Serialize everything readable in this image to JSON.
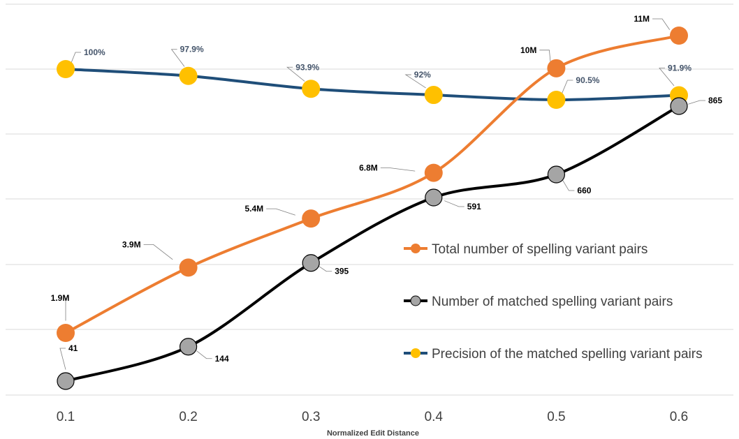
{
  "chart_data": {
    "type": "line",
    "title": "",
    "xlabel": "Normalized Edit Distance",
    "ylabel": "",
    "x": [
      0.1,
      0.2,
      0.3,
      0.4,
      0.5,
      0.6
    ],
    "x_tick_labels": [
      "0.1",
      "0.2",
      "0.3",
      "0.4",
      "0.5",
      "0.6"
    ],
    "grid": "horizontal",
    "legend_position": "right",
    "series": [
      {
        "name": "Total number of spelling variant pairs",
        "line_color": "#ed7d31",
        "marker_color": "#ed7d31",
        "label_color": "#000000",
        "values": [
          1900000,
          3900000,
          5400000,
          6800000,
          10000000,
          11000000
        ],
        "labels": [
          "1.9M",
          "3.9M",
          "5.4M",
          "6.8M",
          "10M",
          "11M"
        ]
      },
      {
        "name": "Number of matched spelling variant pairs",
        "line_color": "#000000",
        "marker_color": "#a5a5a5",
        "label_color": "#000000",
        "values": [
          41,
          144,
          395,
          591,
          660,
          865
        ],
        "labels": [
          "41",
          "144",
          "395",
          "591",
          "660",
          "865"
        ]
      },
      {
        "name": "Precision of the matched spelling variant pairs",
        "line_color": "#1f4e79",
        "marker_color": "#ffc000",
        "label_color": "#44546a",
        "values": [
          100,
          97.9,
          93.9,
          92,
          90.5,
          91.9
        ],
        "labels": [
          "100%",
          "97.9%",
          "93.9%",
          "92%",
          "90.5%",
          "91.9%"
        ]
      }
    ]
  }
}
